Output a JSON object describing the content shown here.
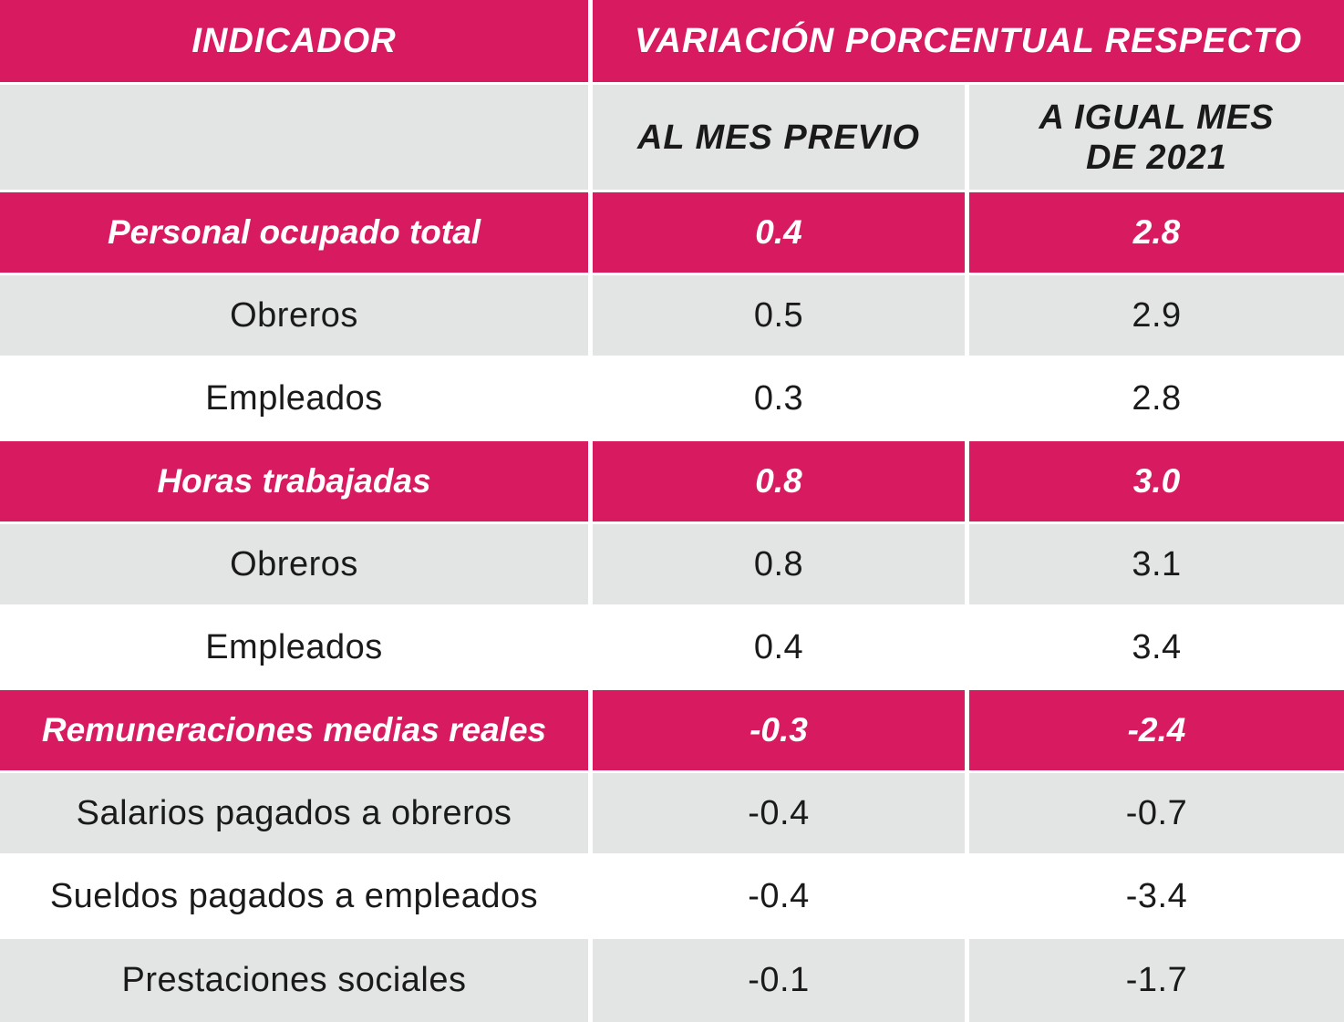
{
  "header": {
    "indicator": "INDICADOR",
    "variation": "VARIACIÓN PORCENTUAL RESPECTO",
    "prev_month": "AL MES PREVIO",
    "same_month_line1": "A IGUAL MES",
    "same_month_line2": "DE 2021"
  },
  "groups": [
    {
      "label": "Personal ocupado total",
      "prev": "0.4",
      "year": "2.8",
      "rows": [
        {
          "label": "Obreros",
          "prev": "0.5",
          "year": "2.9"
        },
        {
          "label": "Empleados",
          "prev": "0.3",
          "year": "2.8"
        }
      ]
    },
    {
      "label": "Horas trabajadas",
      "prev": "0.8",
      "year": "3.0",
      "rows": [
        {
          "label": "Obreros",
          "prev": "0.8",
          "year": "3.1"
        },
        {
          "label": "Empleados",
          "prev": "0.4",
          "year": "3.4"
        }
      ]
    },
    {
      "label": "Remuneraciones medias reales",
      "prev": "-0.3",
      "year": "-2.4",
      "rows": [
        {
          "label": "Salarios pagados a obreros",
          "prev": "-0.4",
          "year": "-0.7"
        },
        {
          "label": "Sueldos pagados a empleados",
          "prev": "-0.4",
          "year": "-3.4"
        },
        {
          "label": "Prestaciones sociales",
          "prev": "-0.1",
          "year": "-1.7"
        }
      ]
    }
  ],
  "colors": {
    "accent": "#d81b60",
    "band": "#e3e4e4"
  }
}
